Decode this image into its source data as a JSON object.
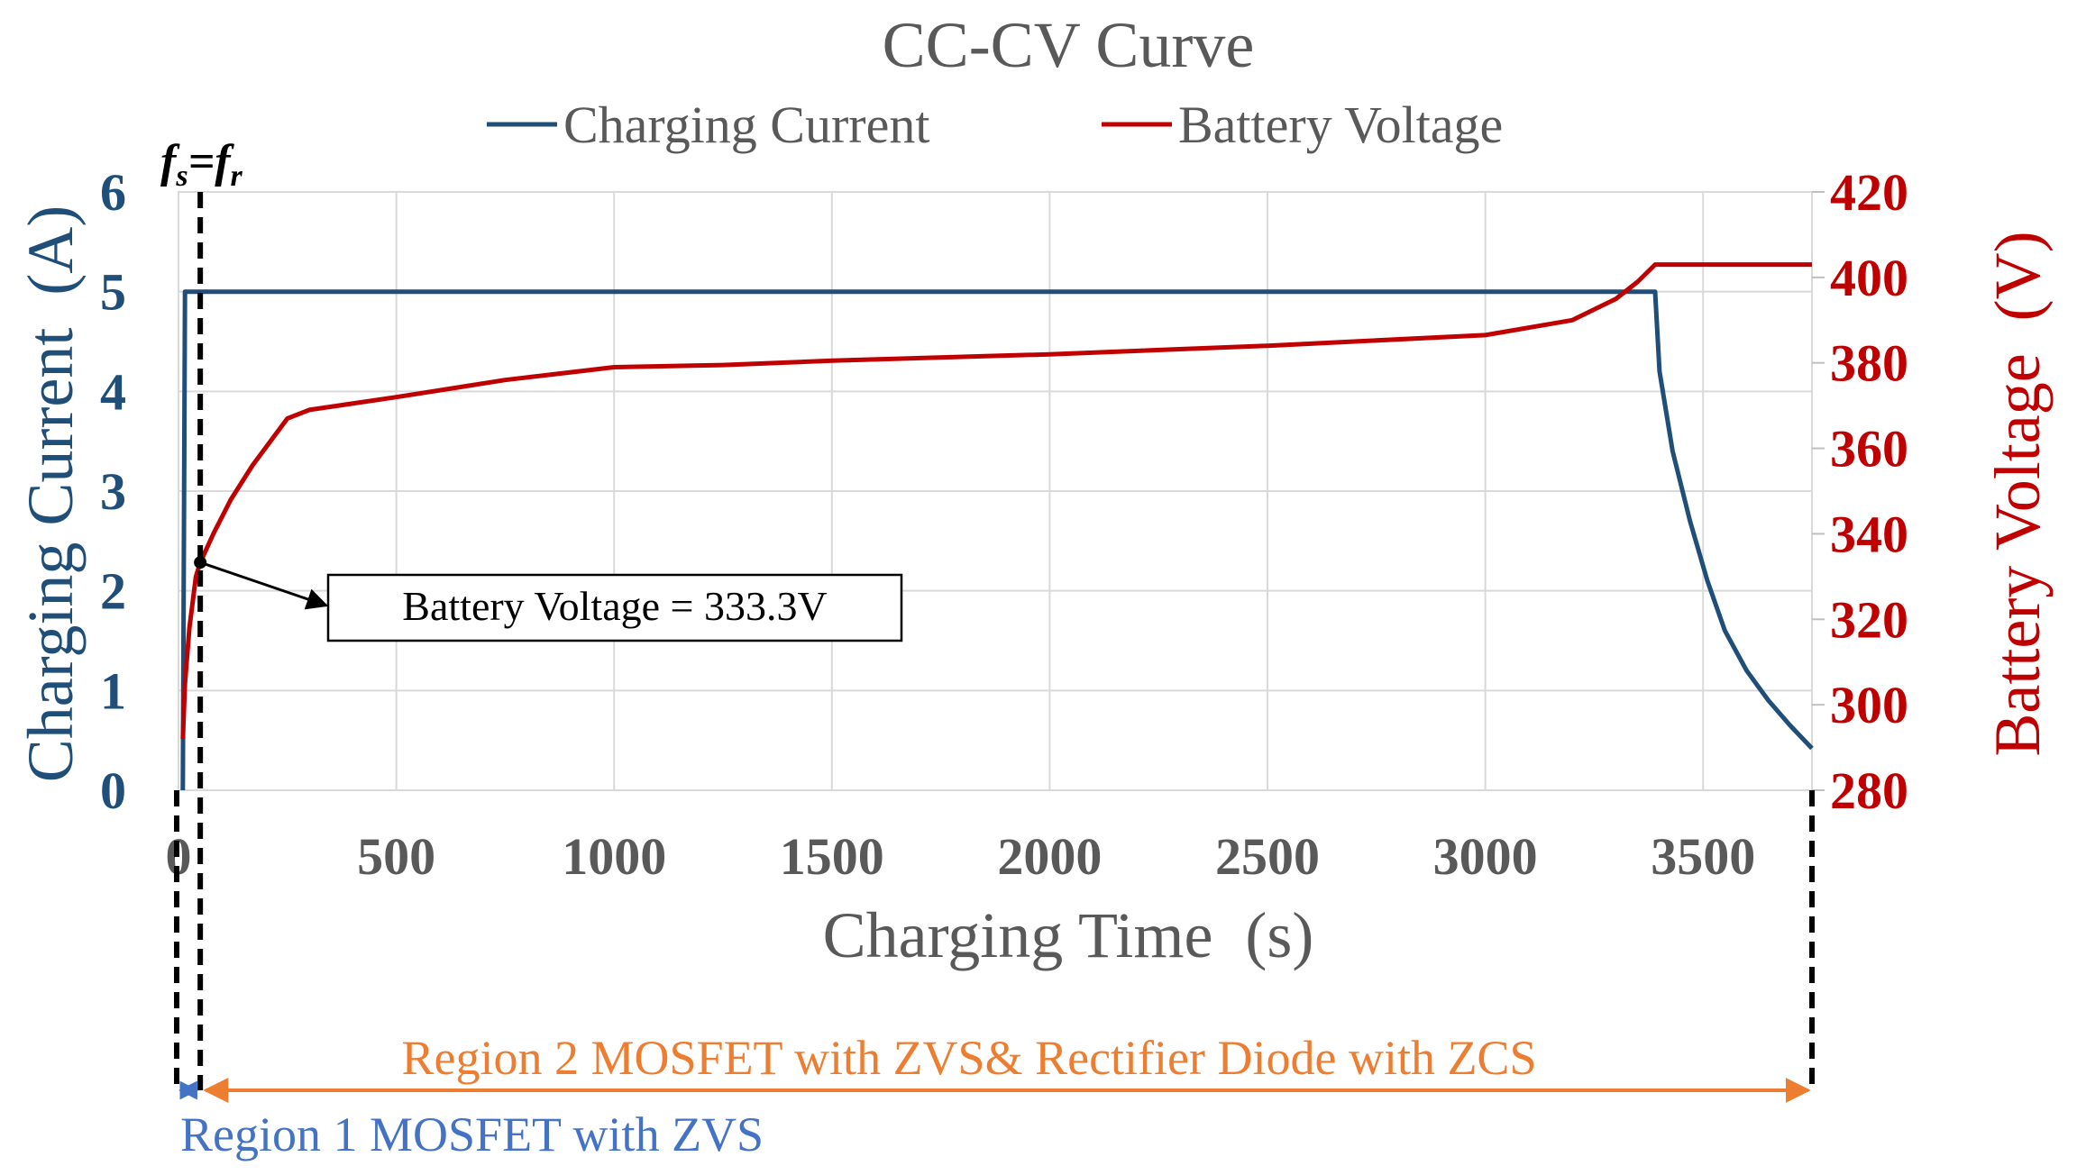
{
  "chart_data": {
    "type": "line",
    "title": "CC-CV Curve",
    "xlabel": "Charging Time  (s)",
    "ylabel_left": "Charging Current  (A)",
    "ylabel_right": "Battery Voltage  (V)",
    "xlim": [
      0,
      3750
    ],
    "ylim_left": [
      0,
      6
    ],
    "ylim_right": [
      280,
      420
    ],
    "x_ticks": [
      "0",
      "500",
      "1000",
      "1500",
      "2000",
      "2500",
      "3000",
      "3500"
    ],
    "y_left_ticks": [
      "0",
      "1",
      "2",
      "3",
      "4",
      "5",
      "6"
    ],
    "y_right_ticks": [
      "280",
      "300",
      "320",
      "340",
      "360",
      "380",
      "400",
      "420"
    ],
    "grid": true,
    "legend_position": "top",
    "series": [
      {
        "name": "Charging Current",
        "axis": "left",
        "color": "#1f4e79",
        "points": [
          [
            10,
            0
          ],
          [
            15,
            5
          ],
          [
            50,
            5
          ],
          [
            500,
            5
          ],
          [
            1000,
            5
          ],
          [
            1500,
            5
          ],
          [
            2000,
            5
          ],
          [
            2500,
            5
          ],
          [
            3000,
            5
          ],
          [
            3390,
            5
          ],
          [
            3400,
            4.2
          ],
          [
            3430,
            3.4
          ],
          [
            3470,
            2.7
          ],
          [
            3510,
            2.1
          ],
          [
            3550,
            1.6
          ],
          [
            3600,
            1.2
          ],
          [
            3650,
            0.9
          ],
          [
            3700,
            0.65
          ],
          [
            3750,
            0.42
          ]
        ]
      },
      {
        "name": "Battery Voltage",
        "axis": "right",
        "color": "#c00000",
        "points": [
          [
            10,
            292
          ],
          [
            15,
            305
          ],
          [
            25,
            318
          ],
          [
            40,
            330
          ],
          [
            50,
            333.3
          ],
          [
            80,
            340
          ],
          [
            120,
            348
          ],
          [
            170,
            356
          ],
          [
            250,
            367
          ],
          [
            300,
            369
          ],
          [
            500,
            372
          ],
          [
            750,
            376
          ],
          [
            1000,
            379
          ],
          [
            1250,
            379.5
          ],
          [
            1500,
            380.5
          ],
          [
            2000,
            382
          ],
          [
            2500,
            384
          ],
          [
            3000,
            386.5
          ],
          [
            3200,
            390
          ],
          [
            3300,
            395
          ],
          [
            3350,
            399
          ],
          [
            3390,
            403
          ],
          [
            3400,
            403
          ],
          [
            3750,
            403
          ]
        ]
      }
    ],
    "annotation": {
      "text": "Battery Voltage = 333.3V",
      "point": [
        50,
        333.3
      ]
    },
    "marker_fs_fr": {
      "x": 50,
      "label_f1": "f",
      "label_s": "s",
      "label_eq": "=",
      "label_f2": "f",
      "label_r": "r"
    },
    "regions": [
      {
        "label": "Region 1 MOSFET with ZVS",
        "x_start": 0,
        "x_end": 50,
        "color": "#4472c4"
      },
      {
        "label": "Region 2 MOSFET with ZVS& Rectifier Diode with ZCS",
        "x_start": 50,
        "x_end": 3750,
        "color": "#ed7d31"
      }
    ]
  }
}
